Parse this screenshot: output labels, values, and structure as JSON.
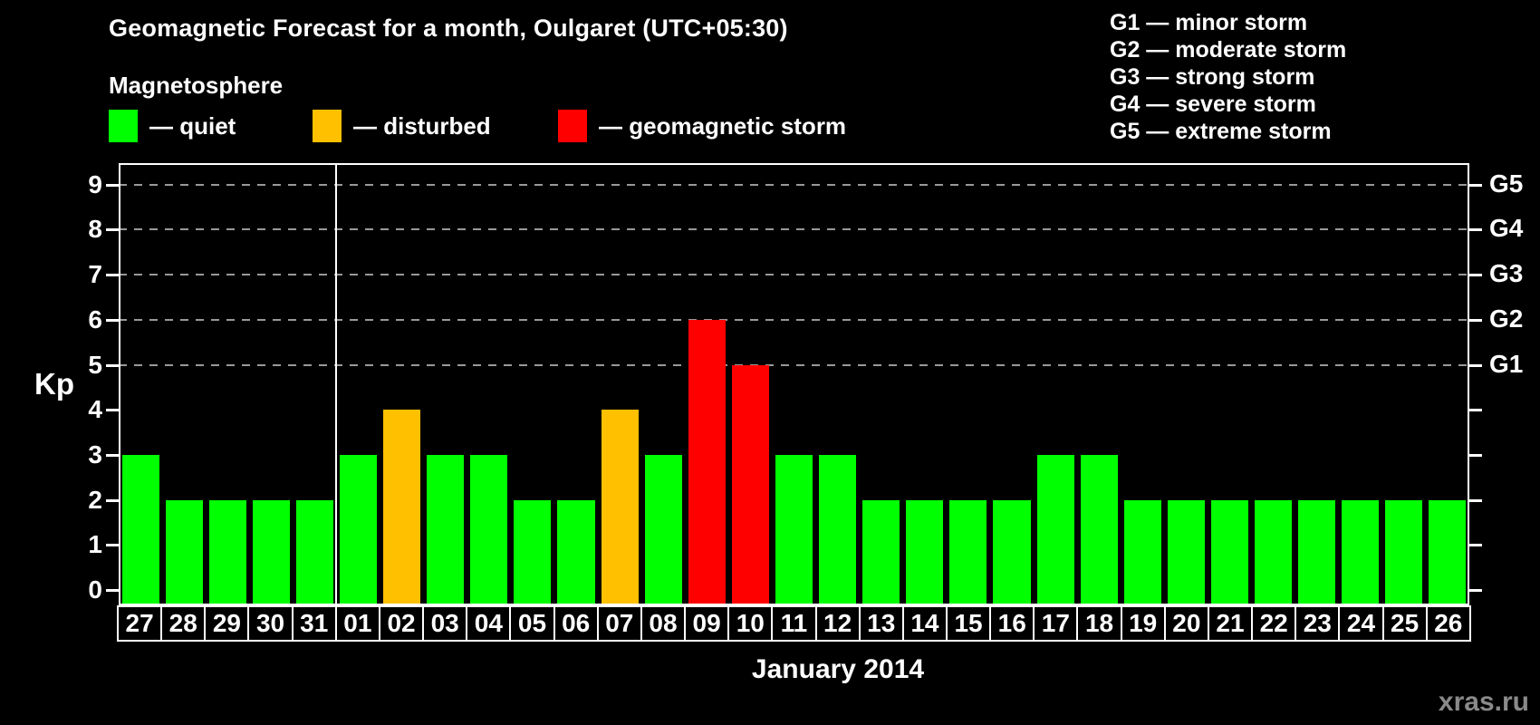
{
  "header": {
    "title": "Geomagnetic Forecast for a month, Oulgaret (UTC+05:30)"
  },
  "legend": {
    "heading": "Magnetosphere",
    "items": [
      {
        "key": "quiet",
        "label": "— quiet",
        "color": "#00ff00"
      },
      {
        "key": "disturbed",
        "label": "— disturbed",
        "color": "#ffc000"
      },
      {
        "key": "storm",
        "label": "— geomagnetic storm",
        "color": "#ff0000"
      }
    ]
  },
  "g_legend": {
    "items": [
      "G1 — minor storm",
      "G2 — moderate storm",
      "G3 — strong storm",
      "G4 — severe storm",
      "G5 — extreme storm"
    ]
  },
  "axes": {
    "y_label": "Kp",
    "y_ticks": [
      0,
      1,
      2,
      3,
      4,
      5,
      6,
      7,
      8,
      9
    ],
    "right_labels": [
      {
        "kp": 5,
        "label": "G1"
      },
      {
        "kp": 6,
        "label": "G2"
      },
      {
        "kp": 7,
        "label": "G3"
      },
      {
        "kp": 8,
        "label": "G4"
      },
      {
        "kp": 9,
        "label": "G5"
      }
    ],
    "x_label": "January 2014"
  },
  "watermark": "xras.ru",
  "chart_data": {
    "type": "bar",
    "title": "Geomagnetic Forecast for a month, Oulgaret (UTC+05:30)",
    "xlabel": "January 2014",
    "ylabel": "Kp",
    "ylim": [
      0,
      9.5
    ],
    "grid_levels": [
      5,
      6,
      7,
      8,
      9
    ],
    "legend_position": "top",
    "categories": [
      "27",
      "28",
      "29",
      "30",
      "31",
      "01",
      "02",
      "03",
      "04",
      "05",
      "06",
      "07",
      "08",
      "09",
      "10",
      "11",
      "12",
      "13",
      "14",
      "15",
      "16",
      "17",
      "18",
      "19",
      "20",
      "21",
      "22",
      "23",
      "24",
      "25",
      "26"
    ],
    "values": [
      3,
      2,
      2,
      2,
      2,
      3,
      4,
      3,
      3,
      2,
      2,
      4,
      3,
      6,
      5,
      3,
      3,
      2,
      2,
      2,
      2,
      3,
      3,
      2,
      2,
      2,
      2,
      2,
      2,
      2,
      2
    ],
    "statuses": [
      "quiet",
      "quiet",
      "quiet",
      "quiet",
      "quiet",
      "quiet",
      "disturbed",
      "quiet",
      "quiet",
      "quiet",
      "quiet",
      "disturbed",
      "quiet",
      "storm",
      "storm",
      "quiet",
      "quiet",
      "quiet",
      "quiet",
      "quiet",
      "quiet",
      "quiet",
      "quiet",
      "quiet",
      "quiet",
      "quiet",
      "quiet",
      "quiet",
      "quiet",
      "quiet",
      "quiet"
    ],
    "colors": {
      "quiet": "#00ff00",
      "disturbed": "#ffc000",
      "storm": "#ff0000"
    },
    "previous_month_days": [
      "27",
      "28",
      "29",
      "30",
      "31"
    ],
    "month_divider_after_index": 4
  }
}
